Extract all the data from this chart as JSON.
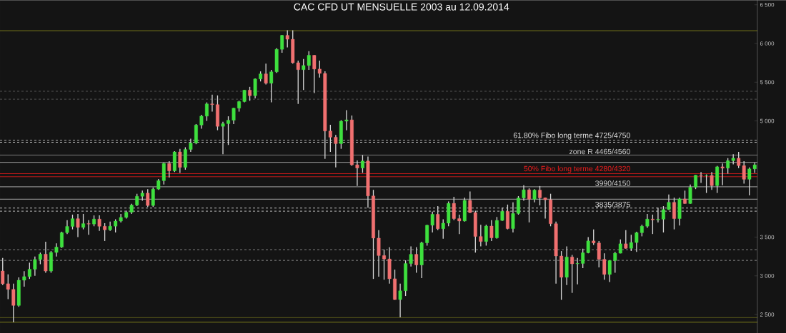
{
  "chart_data": {
    "type": "candlestick",
    "title": "CAC CFD UT MENSUELLE 2003 au 12.09.2014",
    "categories": [
      null,
      null,
      null,
      null,
      null,
      null,
      null,
      null,
      null,
      null,
      null,
      null,
      null,
      null,
      null,
      null,
      null,
      null,
      null,
      null,
      null,
      null,
      null,
      null,
      null,
      null,
      null,
      null,
      null,
      null,
      null,
      null,
      null,
      null,
      null,
      null,
      null,
      null,
      null,
      null,
      null,
      null,
      null,
      null,
      null,
      null,
      null,
      null,
      null,
      null,
      null,
      null,
      null,
      null,
      null,
      null,
      null,
      null,
      null,
      null,
      null,
      null,
      null,
      null,
      null,
      null,
      null,
      null,
      null,
      null,
      null,
      null,
      null,
      null,
      null,
      null,
      null,
      null,
      null,
      null,
      null,
      null,
      null,
      null,
      null,
      null,
      null,
      null,
      null,
      null,
      null,
      null,
      null,
      null,
      null,
      null,
      null,
      null,
      null,
      null,
      null,
      null,
      null,
      null,
      null,
      null,
      null,
      null,
      null,
      null,
      null,
      null,
      null,
      null,
      null,
      null,
      null,
      null,
      null,
      null,
      null,
      null,
      null,
      null,
      null,
      null,
      null,
      null,
      null,
      null,
      null,
      null,
      null,
      null,
      null,
      null,
      null,
      null,
      null,
      null,
      null
    ],
    "ohlc": [
      [
        3063,
        3230,
        2880,
        2898
      ],
      [
        2898,
        3020,
        2700,
        2825
      ],
      [
        2825,
        2900,
        2401,
        2618
      ],
      [
        2618,
        2980,
        2600,
        2943
      ],
      [
        2943,
        3060,
        2860,
        2990
      ],
      [
        2990,
        3170,
        2960,
        3085
      ],
      [
        3085,
        3250,
        3000,
        3211
      ],
      [
        3211,
        3300,
        3150,
        3280
      ],
      [
        3280,
        3440,
        3040,
        3062
      ],
      [
        3062,
        3320,
        3040,
        3302
      ],
      [
        3302,
        3420,
        3250,
        3371
      ],
      [
        3371,
        3570,
        3360,
        3558
      ],
      [
        3558,
        3720,
        3540,
        3638
      ],
      [
        3638,
        3790,
        3600,
        3738
      ],
      [
        3738,
        3800,
        3500,
        3625
      ],
      [
        3625,
        3800,
        3600,
        3674
      ],
      [
        3674,
        3720,
        3530,
        3669
      ],
      [
        3669,
        3780,
        3640,
        3733
      ],
      [
        3733,
        3780,
        3580,
        3640
      ],
      [
        3640,
        3680,
        3450,
        3594
      ],
      [
        3594,
        3700,
        3580,
        3641
      ],
      [
        3641,
        3730,
        3560,
        3707
      ],
      [
        3707,
        3800,
        3690,
        3754
      ],
      [
        3754,
        3840,
        3740,
        3821
      ],
      [
        3821,
        3930,
        3800,
        3913
      ],
      [
        3913,
        4060,
        3900,
        4027
      ],
      [
        4027,
        4100,
        3970,
        4068
      ],
      [
        4068,
        4120,
        3890,
        3908
      ],
      [
        3908,
        4140,
        3890,
        4120
      ],
      [
        4120,
        4250,
        4110,
        4229
      ],
      [
        4229,
        4460,
        4180,
        4451
      ],
      [
        4451,
        4480,
        4270,
        4355
      ],
      [
        4355,
        4610,
        4340,
        4600
      ],
      [
        4600,
        4640,
        4330,
        4400
      ],
      [
        4400,
        4660,
        4370,
        4632
      ],
      [
        4632,
        4770,
        4600,
        4715
      ],
      [
        4715,
        4960,
        4700,
        4947
      ],
      [
        4947,
        5080,
        4900,
        5062
      ],
      [
        5062,
        5240,
        5000,
        5220
      ],
      [
        5220,
        5340,
        5120,
        5211
      ],
      [
        5211,
        5330,
        4880,
        4930
      ],
      [
        4930,
        4990,
        4570,
        4965
      ],
      [
        4965,
        5060,
        4690,
        5009
      ],
      [
        5009,
        5170,
        4960,
        5165
      ],
      [
        5165,
        5260,
        5120,
        5250
      ],
      [
        5250,
        5400,
        5240,
        5398
      ],
      [
        5398,
        5440,
        5260,
        5326
      ],
      [
        5326,
        5550,
        5290,
        5542
      ],
      [
        5542,
        5640,
        5510,
        5608
      ],
      [
        5608,
        5740,
        5470,
        5487
      ],
      [
        5487,
        5660,
        5240,
        5634
      ],
      [
        5634,
        5940,
        5620,
        5925
      ],
      [
        5925,
        6110,
        5880,
        6105
      ],
      [
        6105,
        6170,
        5950,
        6055
      ],
      [
        6055,
        6170,
        5740,
        5752
      ],
      [
        5752,
        5780,
        5220,
        5662
      ],
      [
        5662,
        5800,
        5400,
        5716
      ],
      [
        5716,
        5900,
        5660,
        5848
      ],
      [
        5848,
        5850,
        5360,
        5670
      ],
      [
        5670,
        5780,
        5560,
        5614
      ],
      [
        5614,
        5640,
        4510,
        4870
      ],
      [
        4870,
        4950,
        4600,
        4790
      ],
      [
        4790,
        4820,
        4400,
        4707
      ],
      [
        4707,
        5010,
        4640,
        4997
      ],
      [
        4997,
        5140,
        4880,
        5014
      ],
      [
        5014,
        5070,
        4420,
        4434
      ],
      [
        4434,
        4490,
        4160,
        4392
      ],
      [
        4392,
        4560,
        4330,
        4483
      ],
      [
        4483,
        4540,
        3880,
        4032
      ],
      [
        4032,
        4110,
        2960,
        3487
      ],
      [
        3487,
        3590,
        2990,
        3262
      ],
      [
        3262,
        3340,
        2950,
        3218
      ],
      [
        3218,
        3370,
        2900,
        2962
      ],
      [
        2962,
        3080,
        2690,
        2693
      ],
      [
        2693,
        2900,
        2465,
        2807
      ],
      [
        2807,
        3200,
        2740,
        3159
      ],
      [
        3159,
        3380,
        3120,
        3278
      ],
      [
        3278,
        3370,
        3040,
        3140
      ],
      [
        3140,
        3440,
        2970,
        3426
      ],
      [
        3426,
        3660,
        3390,
        3653
      ],
      [
        3653,
        3830,
        3560,
        3795
      ],
      [
        3795,
        3900,
        3590,
        3608
      ],
      [
        3608,
        3730,
        3480,
        3680
      ],
      [
        3680,
        3960,
        3640,
        3936
      ],
      [
        3936,
        4020,
        3720,
        3739
      ],
      [
        3739,
        3790,
        3540,
        3708
      ],
      [
        3708,
        4010,
        3700,
        3974
      ],
      [
        3974,
        4090,
        3810,
        3817
      ],
      [
        3817,
        3840,
        3300,
        3508
      ],
      [
        3508,
        3660,
        3380,
        3443
      ],
      [
        3443,
        3660,
        3390,
        3643
      ],
      [
        3643,
        3720,
        3450,
        3490
      ],
      [
        3490,
        3760,
        3480,
        3715
      ],
      [
        3715,
        3880,
        3710,
        3833
      ],
      [
        3833,
        3920,
        3600,
        3610
      ],
      [
        3610,
        3950,
        3560,
        3805
      ],
      [
        3805,
        4030,
        3790,
        4005
      ],
      [
        4005,
        4170,
        3970,
        4111
      ],
      [
        4111,
        4130,
        3690,
        3989
      ],
      [
        3989,
        4120,
        3950,
        4107
      ],
      [
        4107,
        4160,
        3910,
        4007
      ],
      [
        4007,
        4010,
        3740,
        3982
      ],
      [
        3982,
        4060,
        3640,
        3673
      ],
      [
        3673,
        3700,
        2900,
        3256
      ],
      [
        3256,
        3320,
        2690,
        2981
      ],
      [
        2981,
        3380,
        2880,
        3243
      ],
      [
        3243,
        3270,
        2780,
        3155
      ],
      [
        3155,
        3230,
        2890,
        3160
      ],
      [
        3160,
        3350,
        3100,
        3298
      ],
      [
        3298,
        3500,
        3290,
        3451
      ],
      [
        3451,
        3600,
        3400,
        3424
      ],
      [
        3424,
        3450,
        3110,
        3213
      ],
      [
        3213,
        3290,
        2950,
        3018
      ],
      [
        3018,
        3200,
        2920,
        3197
      ],
      [
        3197,
        3310,
        3040,
        3292
      ],
      [
        3292,
        3470,
        3290,
        3414
      ],
      [
        3414,
        3590,
        3350,
        3355
      ],
      [
        3355,
        3530,
        3320,
        3430
      ],
      [
        3430,
        3570,
        3310,
        3557
      ],
      [
        3557,
        3660,
        3510,
        3641
      ],
      [
        3641,
        3800,
        3620,
        3733
      ],
      [
        3733,
        3790,
        3540,
        3723
      ],
      [
        3723,
        3880,
        3690,
        3731
      ],
      [
        3731,
        3900,
        3560,
        3856
      ],
      [
        3856,
        4050,
        3850,
        3949
      ],
      [
        3949,
        4010,
        3600,
        3739
      ],
      [
        3739,
        4010,
        3650,
        3993
      ],
      [
        3993,
        4100,
        3930,
        3934
      ],
      [
        3934,
        4180,
        3930,
        4143
      ],
      [
        4143,
        4300,
        4120,
        4299
      ],
      [
        4299,
        4340,
        4200,
        4295
      ],
      [
        4295,
        4310,
        4070,
        4296
      ],
      [
        4296,
        4340,
        4110,
        4165
      ],
      [
        4165,
        4420,
        4070,
        4408
      ],
      [
        4408,
        4450,
        4170,
        4391
      ],
      [
        4391,
        4520,
        4320,
        4487
      ],
      [
        4487,
        4570,
        4440,
        4519
      ],
      [
        4519,
        4600,
        4390,
        4423
      ],
      [
        4423,
        4480,
        4190,
        4247
      ],
      [
        4247,
        4400,
        4040,
        4381
      ],
      [
        4381,
        4460,
        4330,
        4433
      ]
    ],
    "colors": [
      "#f07070",
      "#f07070",
      "#f07070",
      "#3ee03e",
      "#3ee03e",
      "#3ee03e",
      "#3ee03e",
      "#3ee03e",
      "#f07070",
      "#3ee03e",
      "#3ee03e",
      "#3ee03e",
      "#3ee03e",
      "#3ee03e",
      "#f07070",
      "#3ee03e",
      "#f07070",
      "#3ee03e",
      "#f07070",
      "#f07070",
      "#3ee03e",
      "#3ee03e",
      "#3ee03e",
      "#3ee03e",
      "#3ee03e",
      "#3ee03e",
      "#3ee03e",
      "#f07070",
      "#3ee03e",
      "#3ee03e",
      "#3ee03e",
      "#f07070",
      "#3ee03e",
      "#f07070",
      "#3ee03e",
      "#3ee03e",
      "#3ee03e",
      "#3ee03e",
      "#3ee03e",
      "#f07070",
      "#f07070",
      "#3ee03e",
      "#3ee03e",
      "#3ee03e",
      "#3ee03e",
      "#3ee03e",
      "#f07070",
      "#3ee03e",
      "#3ee03e",
      "#f07070",
      "#3ee03e",
      "#3ee03e",
      "#3ee03e",
      "#f07070",
      "#f07070",
      "#f07070",
      "#3ee03e",
      "#3ee03e",
      "#f07070",
      "#f07070",
      "#f07070",
      "#f07070",
      "#f07070",
      "#3ee03e",
      "#3ee03e",
      "#f07070",
      "#f07070",
      "#3ee03e",
      "#f07070",
      "#f07070",
      "#f07070",
      "#f07070",
      "#f07070",
      "#f07070",
      "#3ee03e",
      "#3ee03e",
      "#3ee03e",
      "#f07070",
      "#3ee03e",
      "#3ee03e",
      "#3ee03e",
      "#f07070",
      "#3ee03e",
      "#3ee03e",
      "#f07070",
      "#f07070",
      "#3ee03e",
      "#f07070",
      "#f07070",
      "#f07070",
      "#3ee03e",
      "#f07070",
      "#3ee03e",
      "#3ee03e",
      "#f07070",
      "#3ee03e",
      "#3ee03e",
      "#3ee03e",
      "#f07070",
      "#3ee03e",
      "#f07070",
      "#f07070",
      "#f07070",
      "#f07070",
      "#f07070",
      "#3ee03e",
      "#f07070",
      "#3ee03e",
      "#3ee03e",
      "#3ee03e",
      "#f07070",
      "#f07070",
      "#f07070",
      "#3ee03e",
      "#3ee03e",
      "#3ee03e",
      "#f07070",
      "#3ee03e",
      "#3ee03e",
      "#3ee03e",
      "#3ee03e",
      "#f07070",
      "#3ee03e",
      "#3ee03e",
      "#3ee03e",
      "#f07070",
      "#3ee03e",
      "#f07070",
      "#3ee03e",
      "#3ee03e",
      "#f07070",
      "#3ee03e",
      "#f07070",
      "#3ee03e",
      "#f07070",
      "#3ee03e",
      "#3ee03e",
      "#f07070",
      "#f07070",
      "#3ee03e",
      "#3ee03e"
    ],
    "ylim": [
      2260,
      6560
    ],
    "yticks": [
      {
        "value": 2500,
        "label": "2 500"
      },
      {
        "value": 3000,
        "label": "3 000"
      },
      {
        "value": 3500,
        "label": "3 500"
      },
      {
        "value": 5000,
        "label": "5 000"
      },
      {
        "value": 5500,
        "label": "5 500"
      },
      {
        "value": 6000,
        "label": "6 000"
      },
      {
        "value": 6500,
        "label": "6 500"
      }
    ],
    "ref_lines": [
      {
        "axis": "y",
        "value": 6166,
        "color": "#a0a020",
        "line_style": "solid"
      },
      {
        "axis": "y",
        "value": 2463,
        "color": "#a0a020",
        "line_style": "solid"
      },
      {
        "axis": "y",
        "value": 2400,
        "color": "#a0a020",
        "line_style": "solid"
      },
      {
        "axis": "y",
        "value": 5383,
        "color": "#b0b0b0",
        "line_style": "dashed"
      },
      {
        "axis": "y",
        "value": 5281,
        "color": "#b0b0b0",
        "line_style": "dashed"
      },
      {
        "axis": "y",
        "value": 3338,
        "color": "#b0b0b0",
        "line_style": "dashed"
      },
      {
        "axis": "y",
        "value": 3200,
        "color": "#b0b0b0",
        "line_style": "dashed"
      },
      {
        "axis": "y",
        "value": 4750,
        "label": "61.80% Fibo long terme   4725/4750",
        "color": "#e8e8e8",
        "line_style": "dashed"
      },
      {
        "axis": "y",
        "value": 4725,
        "color": "#e8e8e8",
        "line_style": "dashed"
      },
      {
        "axis": "y",
        "value": 4560,
        "label": "zone R 4465/4560",
        "color": "#d0d0d0",
        "line_style": "solid"
      },
      {
        "axis": "y",
        "value": 4465,
        "color": "#d0d0d0",
        "line_style": "solid"
      },
      {
        "axis": "y",
        "value": 4320,
        "label": "50% Fibo long terme   4280/4320",
        "color": "#ee1c1c",
        "line_style": "solid"
      },
      {
        "axis": "y",
        "value": 4280,
        "color": "#ee1c1c",
        "line_style": "solid"
      },
      {
        "axis": "y",
        "value": 4150,
        "label": "3990/4150",
        "color": "#d0d0d0",
        "line_style": "solid"
      },
      {
        "axis": "y",
        "value": 3990,
        "color": "#d0d0d0",
        "line_style": "solid"
      },
      {
        "axis": "y",
        "value": 3875,
        "label": "3835/3875",
        "color": "#e8e8e8",
        "line_style": "dashed"
      },
      {
        "axis": "y",
        "value": 3835,
        "color": "#e8e8e8",
        "line_style": "dashed"
      }
    ],
    "grid": false
  }
}
